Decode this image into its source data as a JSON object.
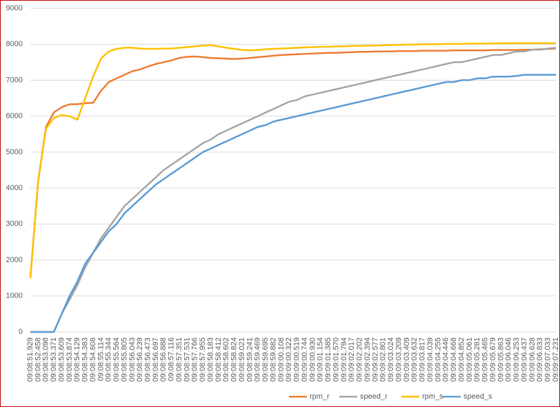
{
  "chart_data": {
    "type": "line",
    "categories": [
      "09:08:51.929",
      "09:08:52.458",
      "09:08:53.098",
      "09:08:53.371",
      "09:08:53.609",
      "09:08:53.874",
      "09:08:54.129",
      "09:08:54.383",
      "09:08:54.608",
      "09:08:55.114",
      "09:08:55.344",
      "09:08:55.564",
      "09:08:55.805",
      "09:08:56.043",
      "09:08:56.239",
      "09:08:56.473",
      "09:08:56.697",
      "09:08:56.888",
      "09:08:57.116",
      "09:08:57.351",
      "09:08:57.531",
      "09:08:57.766",
      "09:08:57.955",
      "09:08:58.183",
      "09:08:58.412",
      "09:08:58.602",
      "09:08:58.824",
      "09:08:59.021",
      "09:08:59.241",
      "09:08:59.469",
      "09:08:59.695",
      "09:08:59.882",
      "09:09:00.108",
      "09:09:00.322",
      "09:09:00.519",
      "09:09:00.744",
      "09:09:00.930",
      "09:09:01.154",
      "09:09:01.385",
      "09:09:01.570",
      "09:09:01.794",
      "09:09:02.017",
      "09:09:02.202",
      "09:09:02.394",
      "09:09:02.577",
      "09:09:02.801",
      "09:09:03.024",
      "09:09:03.209",
      "09:09:03.409",
      "09:09:03.632",
      "09:09:03.817",
      "09:09:04.039",
      "09:09:04.255",
      "09:09:04.446",
      "09:09:04.668",
      "09:09:04.852",
      "09:09:05.061",
      "09:09:05.281",
      "09:09:05.465",
      "09:09:05.679",
      "09:09:05.863",
      "09:09:06.046",
      "09:09:06.253",
      "09:09:06.437",
      "09:09:06.628",
      "09:09:06.833",
      "09:09:07.033",
      "09:09:07.231"
    ],
    "series": [
      {
        "name": "rpm_r",
        "color": "#ed7d31",
        "values": [
          1500,
          4200,
          5700,
          6100,
          6250,
          6330,
          6330,
          6360,
          6370,
          6700,
          6950,
          7050,
          7150,
          7250,
          7300,
          7380,
          7450,
          7500,
          7550,
          7620,
          7650,
          7660,
          7640,
          7620,
          7610,
          7600,
          7590,
          7600,
          7620,
          7640,
          7660,
          7680,
          7700,
          7710,
          7720,
          7730,
          7740,
          7750,
          7760,
          7760,
          7770,
          7780,
          7790,
          7790,
          7800,
          7800,
          7800,
          7810,
          7810,
          7810,
          7820,
          7820,
          7820,
          7820,
          7830,
          7830,
          7830,
          7830,
          7830,
          7840,
          7840,
          7840,
          7840,
          7850,
          7850,
          7860,
          7870,
          7880
        ]
      },
      {
        "name": "speed_r",
        "color": "#a5a5a5",
        "values": [
          0,
          0,
          0,
          0,
          500,
          900,
          1300,
          1800,
          2200,
          2600,
          2900,
          3200,
          3500,
          3700,
          3900,
          4100,
          4300,
          4500,
          4650,
          4800,
          4950,
          5100,
          5250,
          5350,
          5500,
          5600,
          5700,
          5800,
          5900,
          6000,
          6100,
          6200,
          6300,
          6400,
          6450,
          6550,
          6600,
          6650,
          6700,
          6750,
          6800,
          6850,
          6900,
          6950,
          7000,
          7050,
          7100,
          7150,
          7200,
          7250,
          7300,
          7350,
          7400,
          7450,
          7500,
          7500,
          7550,
          7600,
          7650,
          7700,
          7700,
          7750,
          7800,
          7800,
          7850,
          7850,
          7880,
          7900
        ]
      },
      {
        "name": "rpm_s",
        "color": "#ffc000",
        "values": [
          1500,
          4200,
          5650,
          5950,
          6030,
          6000,
          5900,
          6500,
          7100,
          7600,
          7800,
          7870,
          7900,
          7900,
          7880,
          7870,
          7870,
          7880,
          7880,
          7900,
          7920,
          7940,
          7960,
          7970,
          7940,
          7900,
          7870,
          7840,
          7830,
          7840,
          7860,
          7870,
          7880,
          7890,
          7900,
          7910,
          7920,
          7930,
          7930,
          7940,
          7940,
          7950,
          7950,
          7960,
          7960,
          7970,
          7980,
          7980,
          7990,
          7990,
          8000,
          8000,
          8000,
          8010,
          8010,
          8010,
          8020,
          8020,
          8020,
          8020,
          8030,
          8030,
          8030,
          8030,
          8030,
          8030,
          8030,
          8030
        ]
      },
      {
        "name": "speed_s",
        "color": "#5b9bd5",
        "values": [
          0,
          0,
          0,
          0,
          500,
          1000,
          1400,
          1900,
          2200,
          2500,
          2800,
          3000,
          3300,
          3500,
          3700,
          3900,
          4100,
          4250,
          4400,
          4550,
          4700,
          4850,
          5000,
          5100,
          5200,
          5300,
          5400,
          5500,
          5600,
          5700,
          5750,
          5850,
          5900,
          5950,
          6000,
          6050,
          6100,
          6150,
          6200,
          6250,
          6300,
          6350,
          6400,
          6450,
          6500,
          6550,
          6600,
          6650,
          6700,
          6750,
          6800,
          6850,
          6900,
          6950,
          6950,
          7000,
          7000,
          7050,
          7050,
          7100,
          7100,
          7100,
          7120,
          7150,
          7150,
          7150,
          7150,
          7150
        ]
      }
    ],
    "ylim": [
      0,
      9000
    ],
    "yticks": [
      0,
      1000,
      2000,
      3000,
      4000,
      5000,
      6000,
      7000,
      8000,
      9000
    ],
    "grid": true,
    "legend": "bottom"
  }
}
